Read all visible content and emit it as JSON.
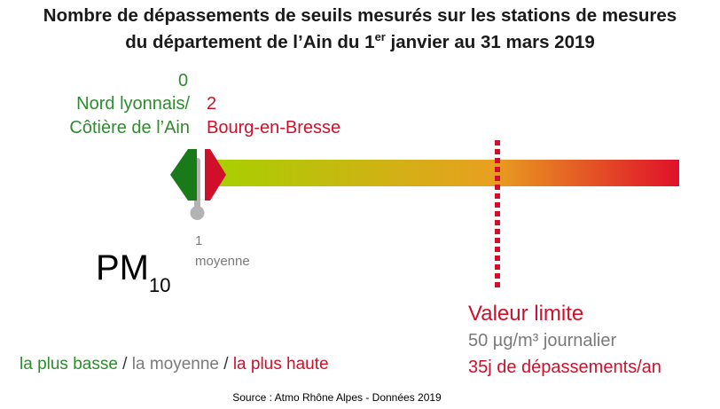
{
  "title": {
    "line1": "Nombre de dépassements de seuils mesurés sur les stations de mesures",
    "line2_pre": "du département de l’Ain du 1",
    "line2_sup": "er",
    "line2_post": " janvier au 31 mars 2019"
  },
  "chart_data": {
    "type": "gauge",
    "pollutant": "PM",
    "pollutant_sub": "10",
    "min": {
      "value": 0,
      "station_line1": "Nord lyonnais/",
      "station_line2": "Côtière de l’Ain",
      "color": "#1a7a1a"
    },
    "max": {
      "value": 2,
      "station": "Bourg-en-Bresse",
      "color": "#d0102a"
    },
    "mean": {
      "value": 1,
      "label": "moyenne",
      "color": "#b3b3b3"
    },
    "limit": {
      "value": 35,
      "title": "Valeur limite",
      "line2": "50 µg/m³ journalier",
      "line3": "35j de dépassements/an"
    },
    "gradient_colors": [
      "#a6d000",
      "#e8a020",
      "#e0102a"
    ]
  },
  "legend": {
    "low": "la plus basse",
    "sep1": " / ",
    "mid": "la moyenne",
    "sep2": " / ",
    "high": "la plus haute"
  },
  "source": "Source : Atmo Rhône Alpes - Données 2019"
}
